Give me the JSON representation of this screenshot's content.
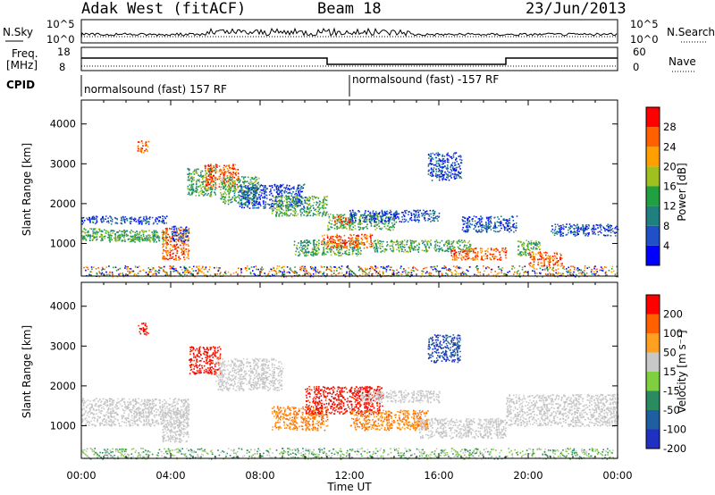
{
  "header": {
    "radar": "Adak West (fitACF)",
    "beam": "Beam 18",
    "date": "23/Jun/2013"
  },
  "panels": {
    "nsky_label": "N.Sky",
    "nsearch_label": "N.Search",
    "nsky_ticks": [
      "10^5",
      "10^0"
    ],
    "nsearch_ticks": [
      "10^5",
      "10^0"
    ],
    "freq_label_line1": "Freq.",
    "freq_label_line2": "[MHz]",
    "freq_ticks": [
      "18",
      "8"
    ],
    "nave_label": "Nave",
    "nave_ticks": [
      "60",
      "0"
    ],
    "cpid_label": "CPID",
    "cpid_segments": [
      {
        "label": "normalsound (fast) 157 RF",
        "start_hour": 0,
        "end_hour": 12
      },
      {
        "label": "normalsound (fast) -157 RF",
        "start_hour": 12,
        "end_hour": 24
      }
    ]
  },
  "chart_data": [
    {
      "type": "heatmap",
      "name": "power-panel",
      "ylabel": "Slant Range [km]",
      "xlabel": "Time UT",
      "xlim_hours": [
        0,
        24
      ],
      "ylim": [
        180,
        4600
      ],
      "y_ticks": [
        1000,
        2000,
        3000,
        4000
      ],
      "x_tick_labels": [
        "00:00",
        "04:00",
        "08:00",
        "12:00",
        "16:00",
        "20:00",
        "00:00"
      ],
      "colorbar": {
        "label": "Power [dB]",
        "ticks": [
          "28",
          "24",
          "20",
          "16",
          "12",
          "8",
          "4"
        ],
        "colors": [
          "#0000ff",
          "#2050c8",
          "#208080",
          "#20a040",
          "#a0c020",
          "#ffa000",
          "#ff6000",
          "#ff0000"
        ]
      },
      "echo_regions": [
        {
          "t0": 0.0,
          "t1": 1.2,
          "r0": 1150,
          "r1": 1400,
          "level": "green"
        },
        {
          "t0": 0.0,
          "t1": 3.8,
          "r0": 1500,
          "r1": 1700,
          "level": "blue"
        },
        {
          "t0": 0.0,
          "t1": 3.5,
          "r0": 1080,
          "r1": 1230,
          "level": "green"
        },
        {
          "t0": 1.2,
          "t1": 3.8,
          "r0": 1050,
          "r1": 1350,
          "level": "green"
        },
        {
          "t0": 3.6,
          "t1": 4.8,
          "r0": 600,
          "r1": 1400,
          "level": "orange"
        },
        {
          "t0": 4.0,
          "t1": 4.8,
          "r0": 1050,
          "r1": 1450,
          "level": "blue"
        },
        {
          "t0": 2.5,
          "t1": 3.0,
          "r0": 3300,
          "r1": 3600,
          "level": "orange"
        },
        {
          "t0": 4.7,
          "t1": 6.0,
          "r0": 2200,
          "r1": 2900,
          "level": "green"
        },
        {
          "t0": 5.5,
          "t1": 7.0,
          "r0": 2400,
          "r1": 3000,
          "level": "orange"
        },
        {
          "t0": 6.2,
          "t1": 8.0,
          "r0": 2000,
          "r1": 2700,
          "level": "green"
        },
        {
          "t0": 7.0,
          "t1": 10.0,
          "r0": 1900,
          "r1": 2500,
          "level": "blue"
        },
        {
          "t0": 8.5,
          "t1": 11.0,
          "r0": 1700,
          "r1": 2200,
          "level": "green"
        },
        {
          "t0": 9.5,
          "t1": 12.5,
          "r0": 700,
          "r1": 1100,
          "level": "green"
        },
        {
          "t0": 10.7,
          "t1": 13.0,
          "r0": 900,
          "r1": 1250,
          "level": "orange"
        },
        {
          "t0": 11.0,
          "t1": 14.0,
          "r0": 1350,
          "r1": 1750,
          "level": "green"
        },
        {
          "t0": 11.3,
          "t1": 12.0,
          "r0": 1500,
          "r1": 1700,
          "level": "orange"
        },
        {
          "t0": 12.0,
          "t1": 16.0,
          "r0": 1550,
          "r1": 1850,
          "level": "blue"
        },
        {
          "t0": 13.0,
          "t1": 17.5,
          "r0": 800,
          "r1": 1100,
          "level": "green"
        },
        {
          "t0": 16.5,
          "t1": 19.0,
          "r0": 600,
          "r1": 900,
          "level": "orange"
        },
        {
          "t0": 15.5,
          "t1": 17.0,
          "r0": 2600,
          "r1": 3300,
          "level": "blue"
        },
        {
          "t0": 17.0,
          "t1": 19.5,
          "r0": 1300,
          "r1": 1700,
          "level": "blue"
        },
        {
          "t0": 19.5,
          "t1": 20.5,
          "r0": 700,
          "r1": 1100,
          "level": "green"
        },
        {
          "t0": 20.0,
          "t1": 21.5,
          "r0": 450,
          "r1": 800,
          "level": "orange"
        },
        {
          "t0": 21.0,
          "t1": 24.0,
          "r0": 1200,
          "r1": 1500,
          "level": "blue"
        },
        {
          "t0": 0.0,
          "t1": 24.0,
          "r0": 180,
          "r1": 450,
          "level": "ground"
        }
      ]
    },
    {
      "type": "heatmap",
      "name": "velocity-panel",
      "ylabel": "Slant Range [km]",
      "xlabel": "Time UT",
      "xlim_hours": [
        0,
        24
      ],
      "ylim": [
        180,
        4600
      ],
      "y_ticks": [
        1000,
        2000,
        3000,
        4000
      ],
      "x_tick_labels": [
        "00:00",
        "04:00",
        "08:00",
        "12:00",
        "16:00",
        "20:00",
        "00:00"
      ],
      "colorbar": {
        "label": "Velocity [m s⁻¹]",
        "ticks": [
          "200",
          "100",
          "50",
          "15",
          "-15",
          "-50",
          "-100",
          "-200"
        ],
        "colors": [
          "#2030c0",
          "#1f5fa0",
          "#2a8a60",
          "#7fcf40",
          "#c8c8c8",
          "#ffa020",
          "#ff6000",
          "#ff0000"
        ]
      },
      "echo_regions": [
        {
          "t0": 0.0,
          "t1": 4.8,
          "r0": 1000,
          "r1": 1700,
          "level": "gray"
        },
        {
          "t0": 3.6,
          "t1": 4.8,
          "r0": 600,
          "r1": 1400,
          "level": "gray"
        },
        {
          "t0": 2.5,
          "t1": 3.0,
          "r0": 3300,
          "r1": 3600,
          "level": "red"
        },
        {
          "t0": 4.8,
          "t1": 6.2,
          "r0": 2300,
          "r1": 3000,
          "level": "red"
        },
        {
          "t0": 6.0,
          "t1": 9.0,
          "r0": 1900,
          "r1": 2700,
          "level": "gray"
        },
        {
          "t0": 8.5,
          "t1": 11.0,
          "r0": 900,
          "r1": 1500,
          "level": "orange"
        },
        {
          "t0": 10.0,
          "t1": 13.5,
          "r0": 1300,
          "r1": 2000,
          "level": "red"
        },
        {
          "t0": 12.0,
          "t1": 15.5,
          "r0": 900,
          "r1": 1400,
          "level": "orange"
        },
        {
          "t0": 12.5,
          "t1": 16.0,
          "r0": 1600,
          "r1": 1900,
          "level": "gray"
        },
        {
          "t0": 15.5,
          "t1": 17.0,
          "r0": 2600,
          "r1": 3300,
          "level": "blue"
        },
        {
          "t0": 15.0,
          "t1": 19.0,
          "r0": 700,
          "r1": 1200,
          "level": "gray"
        },
        {
          "t0": 19.0,
          "t1": 24.0,
          "r0": 1000,
          "r1": 1800,
          "level": "gray"
        },
        {
          "t0": 0.0,
          "t1": 24.0,
          "r0": 180,
          "r1": 450,
          "level": "green"
        }
      ]
    }
  ]
}
